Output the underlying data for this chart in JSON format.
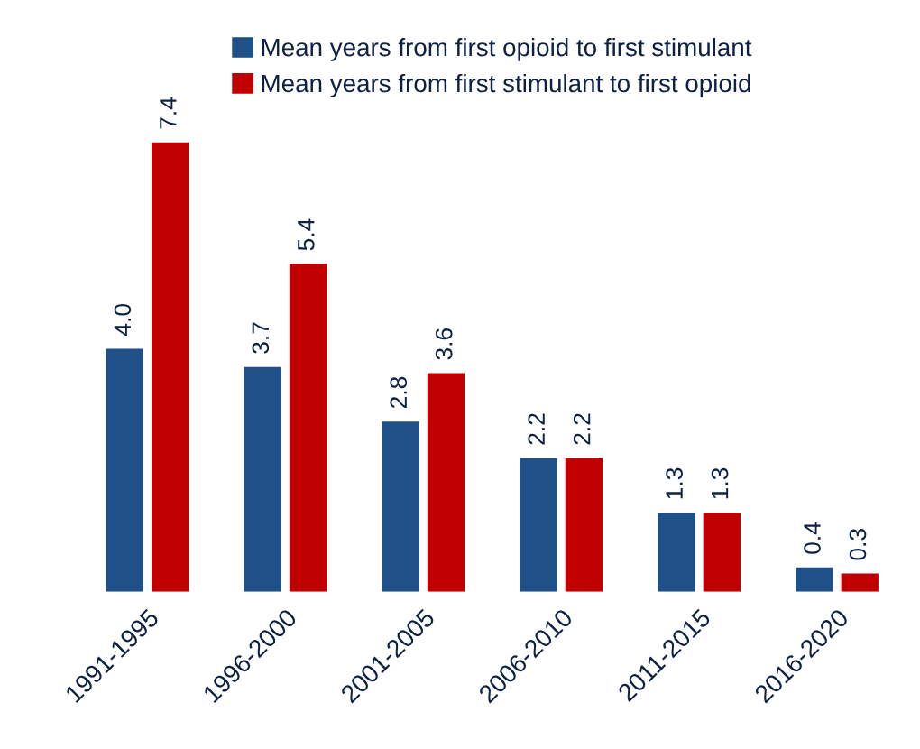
{
  "chart_data": {
    "type": "bar",
    "categories": [
      "1991-1995",
      "1996-2000",
      "2001-2005",
      "2006-2010",
      "2011-2015",
      "2016-2020"
    ],
    "series": [
      {
        "name": "Mean years from first opioid to first stimulant",
        "color": "#1f5088",
        "values": [
          4.0,
          3.7,
          2.8,
          2.2,
          1.3,
          0.4
        ],
        "value_labels": [
          "4.0",
          "3.7",
          "2.8",
          "2.2",
          "1.3",
          "0.4"
        ]
      },
      {
        "name": "Mean years from first stimulant to first opioid",
        "color": "#c00000",
        "values": [
          7.4,
          5.4,
          3.6,
          2.2,
          1.3,
          0.3
        ],
        "value_labels": [
          "7.4",
          "5.4",
          "3.6",
          "2.2",
          "1.3",
          "0.3"
        ]
      }
    ],
    "legend": "top",
    "tick_labels": "x",
    "grid": false
  }
}
